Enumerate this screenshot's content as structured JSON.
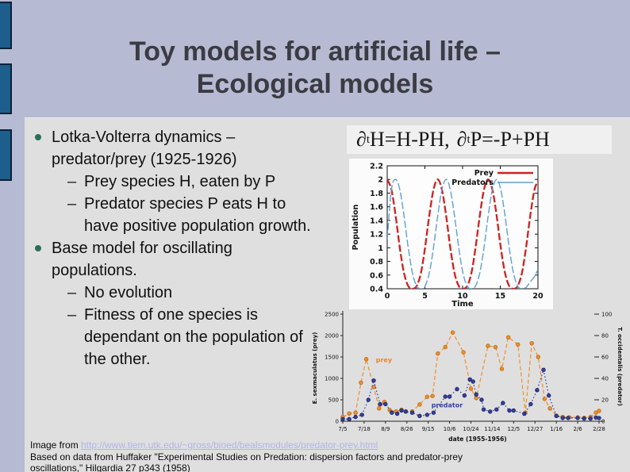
{
  "slide": {
    "title_line1": "Toy models for artificial life –",
    "title_line2": "Ecological models",
    "dash": "–",
    "bullets": [
      {
        "level": 1,
        "text": "Lotka-Volterra dynamics – predator/prey (1925-1926)"
      },
      {
        "level": 2,
        "text": "Prey species H, eaten by P"
      },
      {
        "level": 2,
        "text": "Predator species P eats H to have positive population growth."
      },
      {
        "level": 1,
        "text": "Base model for oscillating populations."
      },
      {
        "level": 2,
        "text": "No evolution"
      },
      {
        "level": 2,
        "text": "Fitness of one species is dependant on the population of the other."
      }
    ],
    "equation": {
      "p1": "∂",
      "s1": "t",
      "m1": "H=H-PH,",
      "p2": "∂",
      "s2": "t",
      "m2": "P=-P+PH"
    },
    "caption": {
      "prefix": "Image from ",
      "link": "http://www.tiem.utk.edu/~gross/bioed/bealsmodules/predator-prey.html",
      "line2": "Based on data from Huffaker \"Experimental Studies on Predation: dispersion factors and predator-prey",
      "line3": "oscillations,\" Hilgardia 27 p343 (1958)"
    }
  },
  "colors": {
    "background": "#b6bad2",
    "panel": "#dfdfdf",
    "title": "#3b3b42",
    "sidebar_bar_fill": "#1d5e8c",
    "sidebar_bar_border": "#0c2238",
    "bullet_green": "#2c6e58",
    "link": "#b0b4e8",
    "equation_bg": "#f0f0f0"
  },
  "chart_data": [
    {
      "type": "line",
      "title": "",
      "xlabel": "Time",
      "ylabel": "Population",
      "xlim": [
        0,
        20
      ],
      "ylim": [
        0.4,
        2.2
      ],
      "xticks": [
        0,
        5,
        10,
        15,
        20
      ],
      "xtick_labels": [
        "0",
        "5",
        "10",
        "15",
        "20"
      ],
      "yticks": [
        0.4,
        0.6,
        0.8,
        1,
        1.2,
        1.4,
        1.6,
        1.8,
        2,
        2.2
      ],
      "ytick_labels": [
        "0.4",
        "0.6",
        "0.8",
        "1",
        "1.2",
        "1.4",
        "1.6",
        "1.8",
        "2",
        "2.2"
      ],
      "grid": false,
      "legend_position": "top-right",
      "x": [
        0,
        0.56,
        1.12,
        1.67,
        2.23,
        2.79,
        3.35,
        3.91,
        4.47,
        5.02,
        5.58,
        6.14,
        6.7,
        7.26,
        7.82,
        8.37,
        8.93,
        9.49,
        10.05,
        10.61,
        11.17,
        11.72,
        12.28,
        12.84,
        13.4,
        13.96,
        14.52,
        15.07,
        15.63,
        16.19,
        16.75,
        17.31,
        17.87,
        18.42,
        18.98,
        19.54,
        20
      ],
      "series": [
        {
          "name": "Prey",
          "color": "#cc2222",
          "width": 2.3,
          "dash": "9,3",
          "y": [
            2,
            1.85,
            1.47,
            1,
            0.63,
            0.44,
            0.4,
            0.44,
            0.63,
            1,
            1.47,
            1.85,
            2,
            1.85,
            1.47,
            1,
            0.63,
            0.44,
            0.4,
            0.44,
            0.63,
            1,
            1.47,
            1.85,
            2,
            1.85,
            1.47,
            1,
            0.63,
            0.44,
            0.4,
            0.44,
            0.63,
            1,
            1.47,
            1.85,
            1.97
          ]
        },
        {
          "name": "Predators",
          "color": "#5f9fd4",
          "width": 1.4,
          "dash": "9,3",
          "y": [
            1.12,
            1.85,
            2,
            1.85,
            1.47,
            1,
            0.63,
            0.44,
            0.4,
            0.44,
            0.63,
            1,
            1.47,
            1.85,
            2,
            1.85,
            1.47,
            1,
            0.63,
            0.44,
            0.4,
            0.44,
            0.63,
            1,
            1.47,
            1.85,
            2,
            1.85,
            1.47,
            1,
            0.63,
            0.44,
            0.4,
            0.42,
            0.5,
            0.58,
            0.68
          ]
        }
      ]
    },
    {
      "type": "line",
      "title": "",
      "xlabel": "date (1955-1956)",
      "ylabel_left": "E. sexmaculatus (prey)",
      "ylabel_right": "T. occidentalis (predator)",
      "x_tick_labels": [
        "7/5",
        "7/18",
        "8/9",
        "8/26",
        "9/15",
        "10/6",
        "10/24",
        "11/14",
        "12/5",
        "12/27",
        "1/16",
        "2/6",
        "2/28"
      ],
      "ylim_left": [
        0,
        2500
      ],
      "yticks_left": [
        0,
        500,
        1000,
        1500,
        2000,
        2500
      ],
      "ylim_right": [
        0,
        100
      ],
      "yticks_right": [
        0,
        20,
        40,
        60,
        80,
        100
      ],
      "grid": false,
      "annotations": [
        {
          "text": "prey",
          "axis": "left",
          "x": 1.55,
          "y": 1380,
          "color": "#e8862a"
        },
        {
          "text": "predator",
          "axis": "right",
          "x": 4.15,
          "y": 13,
          "color": "#333f9e"
        }
      ],
      "series": [
        {
          "name": "prey",
          "axis": "left",
          "color": "#ee8e2e",
          "marker_edge": "#b96a12",
          "line": "dashed",
          "points": [
            [
              0,
              100
            ],
            [
              0.3,
              180
            ],
            [
              0.6,
              200
            ],
            [
              0.85,
              900
            ],
            [
              1.1,
              1450
            ],
            [
              1.45,
              800
            ],
            [
              1.7,
              300
            ],
            [
              1.95,
              450
            ],
            [
              2.2,
              260
            ],
            [
              2.5,
              230
            ],
            [
              2.75,
              270
            ],
            [
              2.95,
              230
            ],
            [
              3.25,
              230
            ],
            [
              3.6,
              390
            ],
            [
              3.95,
              570
            ],
            [
              4.2,
              590
            ],
            [
              4.45,
              1580
            ],
            [
              4.8,
              1730
            ],
            [
              5.15,
              2070
            ],
            [
              5.65,
              1610
            ],
            [
              6,
              760
            ],
            [
              6.25,
              540
            ],
            [
              6.8,
              1760
            ],
            [
              7.15,
              1730
            ],
            [
              7.45,
              1220
            ],
            [
              7.75,
              1960
            ],
            [
              8.2,
              1790
            ],
            [
              8.55,
              200
            ],
            [
              8.85,
              1820
            ],
            [
              9.15,
              1500
            ],
            [
              9.45,
              520
            ],
            [
              9.7,
              300
            ],
            [
              10,
              130
            ],
            [
              10.3,
              100
            ],
            [
              10.6,
              90
            ],
            [
              11,
              90
            ],
            [
              11.3,
              80
            ],
            [
              11.6,
              100
            ],
            [
              11.85,
              200
            ],
            [
              12,
              240
            ]
          ]
        },
        {
          "name": "predator",
          "axis": "right",
          "color": "#333f9e",
          "marker_edge": "#1c2560",
          "line": "dotted",
          "points": [
            [
              0,
              2
            ],
            [
              0.3,
              2
            ],
            [
              0.6,
              4
            ],
            [
              0.9,
              6
            ],
            [
              1.2,
              20
            ],
            [
              1.45,
              38
            ],
            [
              1.75,
              16
            ],
            [
              2,
              16
            ],
            [
              2.3,
              8
            ],
            [
              2.55,
              7
            ],
            [
              2.75,
              10
            ],
            [
              2.95,
              9
            ],
            [
              3.25,
              8
            ],
            [
              3.6,
              5
            ],
            [
              3.95,
              6
            ],
            [
              4.25,
              8
            ],
            [
              4.8,
              23
            ],
            [
              5,
              23
            ],
            [
              5.35,
              30
            ],
            [
              5.7,
              24
            ],
            [
              5.95,
              39
            ],
            [
              6.1,
              37
            ],
            [
              6.25,
              25
            ],
            [
              6.5,
              20
            ],
            [
              6.6,
              11
            ],
            [
              6.9,
              9
            ],
            [
              7.2,
              11
            ],
            [
              7.5,
              17
            ],
            [
              7.8,
              10
            ],
            [
              8,
              10
            ],
            [
              8.5,
              7
            ],
            [
              8.8,
              16
            ],
            [
              9.1,
              29
            ],
            [
              9.4,
              48
            ],
            [
              9.65,
              24
            ],
            [
              10,
              5
            ],
            [
              10.3,
              3
            ],
            [
              10.55,
              3
            ],
            [
              11,
              3
            ],
            [
              11.3,
              2.5
            ],
            [
              11.6,
              2.5
            ],
            [
              11.85,
              3.5
            ],
            [
              12,
              3
            ]
          ]
        }
      ]
    }
  ]
}
